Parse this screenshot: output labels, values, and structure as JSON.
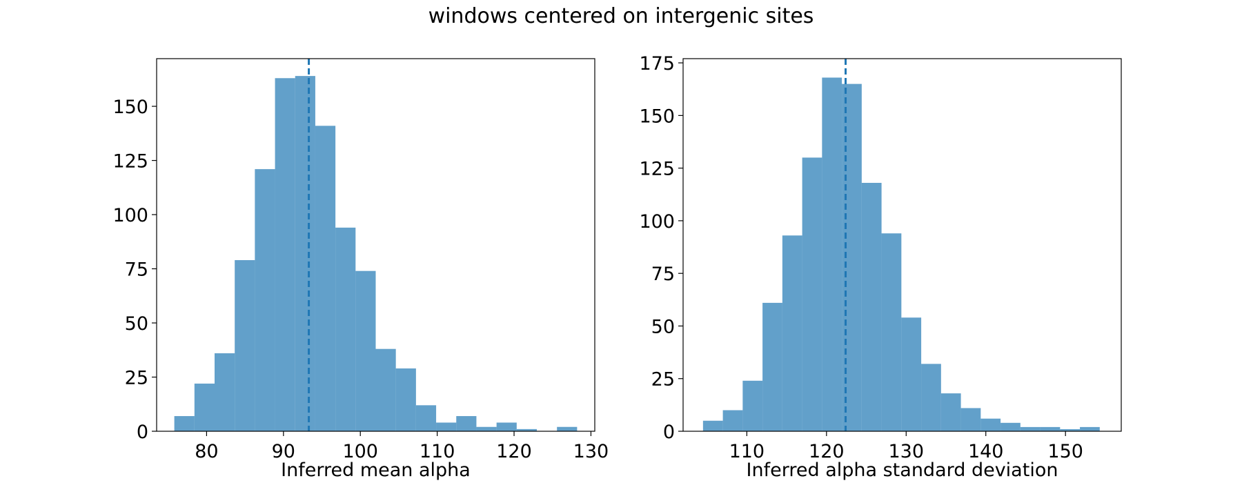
{
  "figure": {
    "title": "windows centered on intergenic sites"
  },
  "chart_data": [
    {
      "type": "bar",
      "subtype": "histogram",
      "xlabel": "Inferred mean alpha",
      "ylabel": "",
      "xlim": [
        73.5,
        130.5
      ],
      "ylim": [
        0,
        172
      ],
      "xticks": [
        80,
        90,
        100,
        110,
        120,
        130
      ],
      "yticks": [
        0,
        25,
        50,
        75,
        100,
        125,
        150
      ],
      "bin_start": 75.8,
      "bin_width": 2.62,
      "values": [
        7,
        22,
        36,
        79,
        121,
        163,
        164,
        141,
        94,
        74,
        38,
        29,
        12,
        4,
        7,
        2,
        4,
        1,
        0,
        2
      ],
      "vline": 93.3,
      "bar_color": "#1f77b4",
      "bar_alpha": 0.7,
      "line_color": "#1f77b4"
    },
    {
      "type": "bar",
      "subtype": "histogram",
      "xlabel": "Inferred alpha standard deviation",
      "ylabel": "",
      "xlim": [
        102,
        157
      ],
      "ylim": [
        0,
        177
      ],
      "xticks": [
        110,
        120,
        130,
        140,
        150
      ],
      "yticks": [
        0,
        25,
        50,
        75,
        100,
        125,
        150,
        175
      ],
      "bin_start": 104.5,
      "bin_width": 2.49,
      "values": [
        5,
        10,
        24,
        61,
        93,
        130,
        168,
        165,
        118,
        94,
        54,
        32,
        18,
        11,
        6,
        4,
        2,
        2,
        1,
        2
      ],
      "vline": 122.4,
      "bar_color": "#1f77b4",
      "bar_alpha": 0.7,
      "line_color": "#1f77b4"
    }
  ]
}
